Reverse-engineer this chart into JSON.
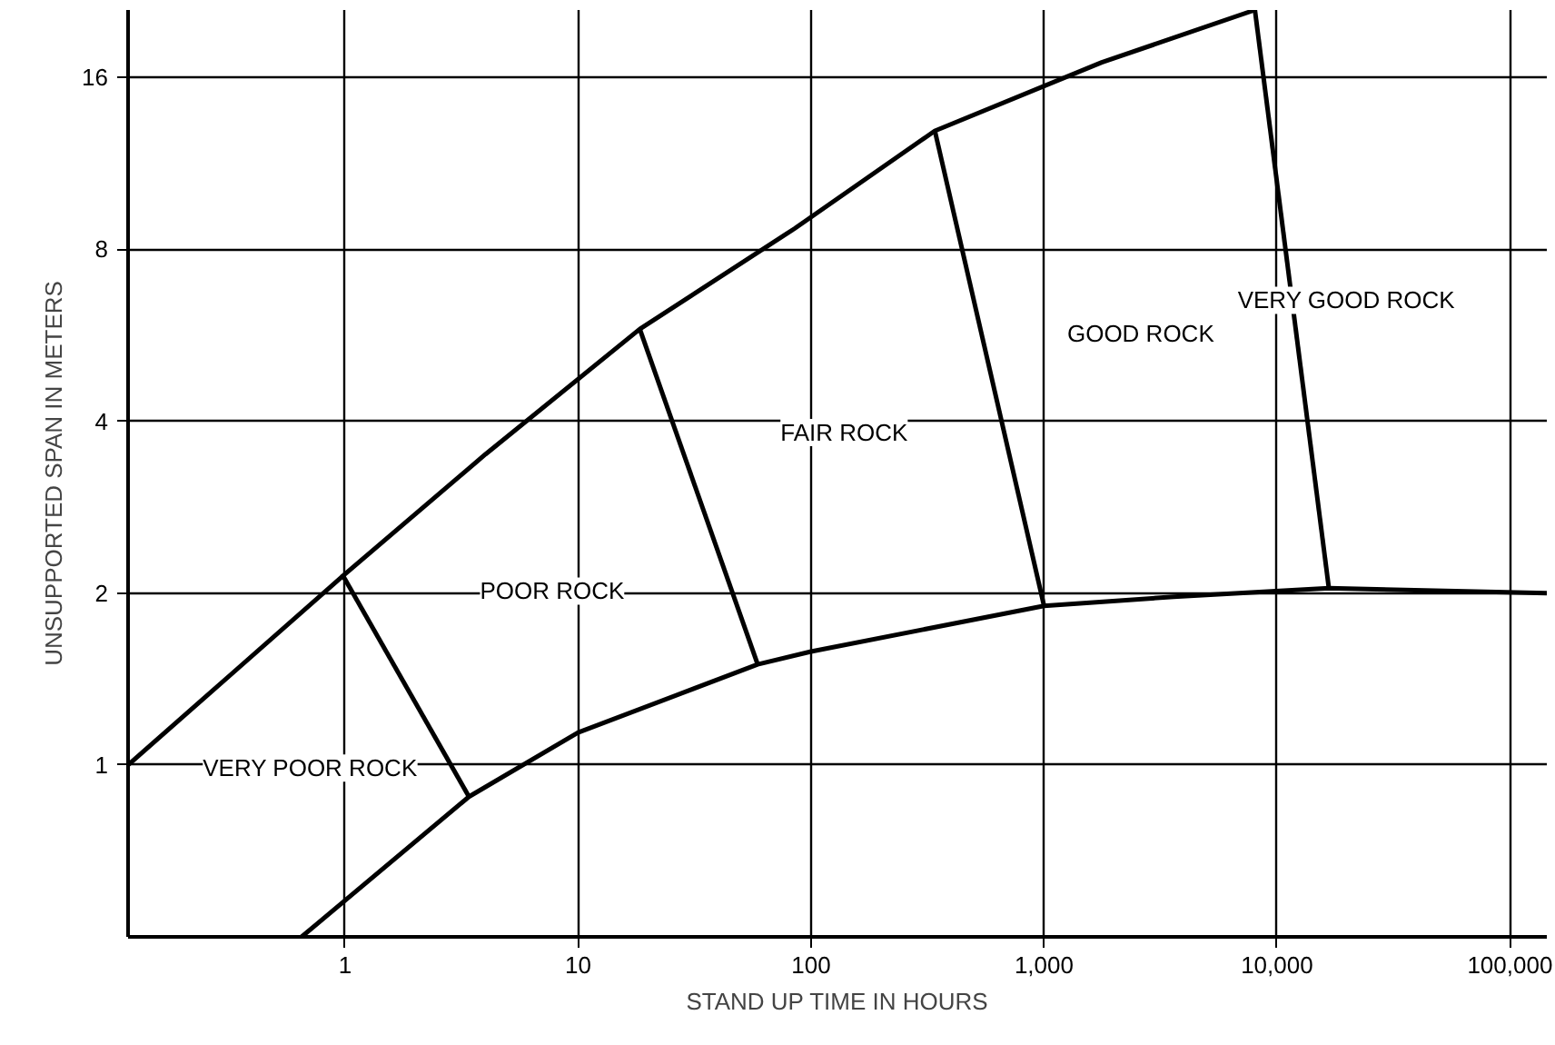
{
  "chart_data": {
    "type": "line",
    "xlabel": "STAND UP TIME IN HOURS",
    "ylabel": "UNSUPPORTED SPAN IN METERS",
    "log": "xy",
    "grid": true,
    "marker": "none",
    "line_style": "solid",
    "xlim": [
      0.117,
      144000
    ],
    "ylim": [
      0.5,
      21
    ],
    "xticks": [
      1,
      10,
      100,
      {
        "value": 1000,
        "label": "1,000"
      },
      {
        "value": 10000,
        "label": "10,000"
      },
      {
        "value": 100000,
        "label": "100,000"
      }
    ],
    "yticks": [
      1,
      2,
      4,
      8,
      16
    ],
    "series": [
      {
        "color": "#000000",
        "x": [
          0.117,
          1,
          4.0,
          18.4,
          85,
          340,
          1770,
          8040
        ],
        "values": [
          1,
          2.16,
          3.5,
          5.8,
          8.7,
          12.9,
          17,
          21
        ]
      },
      {
        "color": "#000000",
        "x": [
          0.65,
          3.4,
          10,
          59,
          100,
          1000,
          3600,
          16700,
          144000
        ],
        "values": [
          0.5,
          0.88,
          1.14,
          1.5,
          1.58,
          1.9,
          1.97,
          2.04,
          2.0
        ]
      },
      {
        "color": "#000000",
        "x": [
          0.97,
          3.4
        ],
        "values": [
          2.16,
          0.88
        ]
      },
      {
        "color": "#000000",
        "x": [
          18.4,
          59
        ],
        "values": [
          5.8,
          1.5
        ]
      },
      {
        "color": "#000000",
        "x": [
          340,
          1000
        ],
        "values": [
          12.9,
          1.9
        ]
      },
      {
        "color": "#000000",
        "x": [
          8040,
          16700
        ],
        "values": [
          21,
          2.04
        ]
      }
    ],
    "annotations": [
      "VERY POOR ROCK",
      "POOR ROCK",
      "FAIR ROCK",
      "GOOD ROCK",
      "VERY GOOD ROCK"
    ]
  }
}
